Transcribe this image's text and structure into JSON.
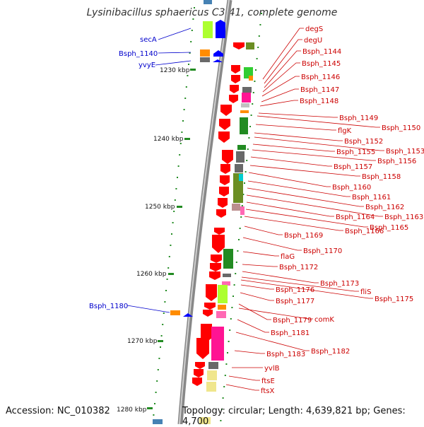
{
  "title": "Lysinibacillus sphaericus C3-41, complete genome",
  "accession": "Accession: NC_010382",
  "topology": "Topology: circular; Length: 4,639,821 bp; Genes: 4,700",
  "ticks": [
    "1230 kbp",
    "1240 kbp",
    "1250 kbp",
    "1260 kbp",
    "1270 kbp",
    "1280 kbp"
  ],
  "left_labels": [
    "secA",
    "Bsph_1140",
    "yvyE",
    "Bsph_1180"
  ],
  "right_labels": [
    "degS",
    "degU",
    "Bsph_1144",
    "Bsph_1145",
    "Bsph_1146",
    "Bsph_1147",
    "Bsph_1148",
    "Bsph_1149",
    "Bsph_1150",
    "flgK",
    "Bsph_1152",
    "Bsph_1153",
    "Bsph_1155",
    "Bsph_1156",
    "Bsph_1157",
    "Bsph_1158",
    "Bsph_1160",
    "Bsph_1161",
    "Bsph_1162",
    "Bsph_1163",
    "Bsph_1164",
    "Bsph_1165",
    "Bsph_1166",
    "Bsph_1169",
    "Bsph_1170",
    "flaG",
    "Bsph_1172",
    "Bsph_1173",
    "fliS",
    "Bsph_1175",
    "Bsph_1176",
    "Bsph_1177",
    "comK",
    "Bsph_1179",
    "Bsph_1181",
    "Bsph_1182",
    "Bsph_1183",
    "yvlB",
    "ftsE",
    "ftsX"
  ],
  "colors": {
    "forward_arrow": "#ff0000",
    "reverse_arrow": "#0000ff",
    "label_red": "#cc0000",
    "label_blue": "#0000cc",
    "backbone": "#888888",
    "tick": "#228b22"
  }
}
